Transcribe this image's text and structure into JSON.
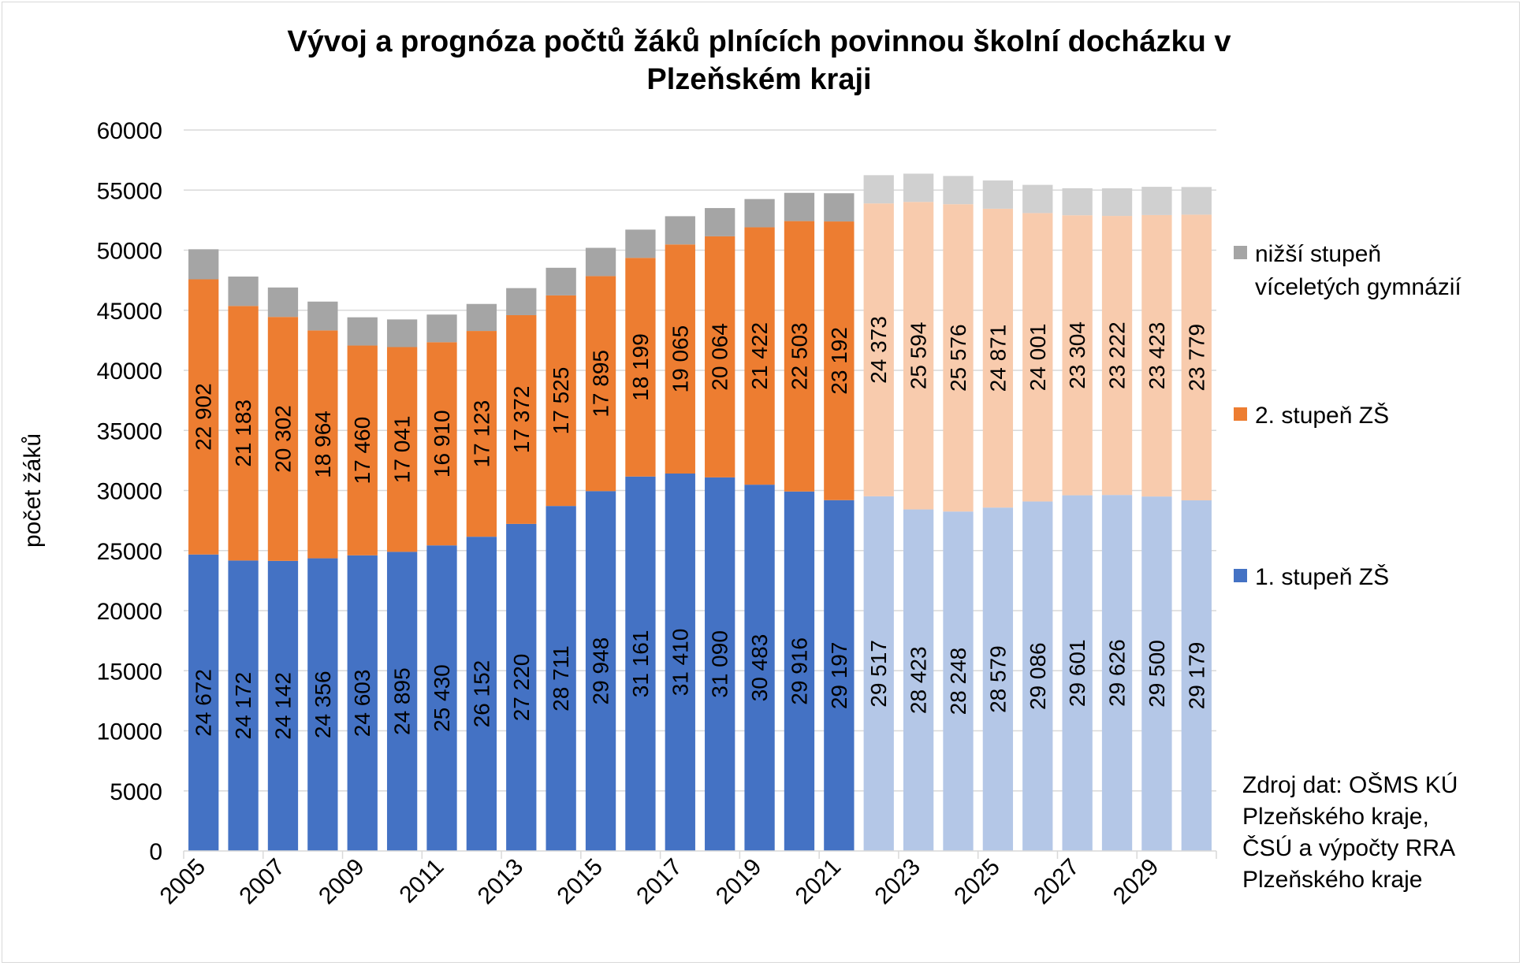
{
  "chart_data": {
    "type": "bar",
    "stacked": true,
    "title_lines": [
      "Vývoj a prognóza počtů žáků plnících povinnou školní docházku v",
      "Plzeňském kraji"
    ],
    "ylabel": "počet žáků",
    "ylim": [
      0,
      60000
    ],
    "y_ticks": [
      0,
      5000,
      10000,
      15000,
      20000,
      25000,
      30000,
      35000,
      40000,
      45000,
      50000,
      55000,
      60000
    ],
    "grid": true,
    "legend_position": "right",
    "categories": [
      "2005",
      "2006",
      "2007",
      "2008",
      "2009",
      "2010",
      "2011",
      "2012",
      "2013",
      "2014",
      "2015",
      "2016",
      "2017",
      "2018",
      "2019",
      "2020",
      "2021",
      "2022",
      "2023",
      "2024",
      "2025",
      "2026",
      "2027",
      "2028",
      "2029",
      "2030"
    ],
    "x_tick_labels_shown": [
      "2005",
      "2007",
      "2009",
      "2011",
      "2013",
      "2015",
      "2017",
      "2019",
      "2021",
      "2023",
      "2025",
      "2027",
      "2029"
    ],
    "forecast_from": "2022",
    "series": [
      {
        "name": "1. stupeň ZŠ",
        "color": "#4472c4",
        "forecast_color": "#b4c7e7",
        "values": [
          24672,
          24172,
          24142,
          24356,
          24603,
          24895,
          25430,
          26152,
          27220,
          28711,
          29948,
          31161,
          31410,
          31090,
          30483,
          29916,
          29197,
          29517,
          28423,
          28248,
          28579,
          29086,
          29601,
          29626,
          29500,
          29179
        ],
        "labels": [
          "24 672",
          "24 172",
          "24 142",
          "24 356",
          "24 603",
          "24 895",
          "25 430",
          "26 152",
          "27 220",
          "28 711",
          "29 948",
          "31 161",
          "31 410",
          "31 090",
          "30 483",
          "29 916",
          "29 197",
          "29 517",
          "28 423",
          "28 248",
          "28 579",
          "29 086",
          "29 601",
          "29 626",
          "29 500",
          "29 179"
        ]
      },
      {
        "name": "2. stupeň ZŠ",
        "color": "#ed7d31",
        "forecast_color": "#f8cbad",
        "values": [
          22902,
          21183,
          20302,
          18964,
          17460,
          17041,
          16910,
          17123,
          17372,
          17525,
          17895,
          18199,
          19065,
          20064,
          21422,
          22503,
          23192,
          24373,
          25594,
          25576,
          24871,
          24001,
          23304,
          23222,
          23423,
          23779
        ],
        "labels": [
          "22 902",
          "21 183",
          "20 302",
          "18 964",
          "17 460",
          "17 041",
          "16 910",
          "17 123",
          "17 372",
          "17 525",
          "17 895",
          "18 199",
          "19 065",
          "20 064",
          "21 422",
          "22 503",
          "23 192",
          "24 373",
          "25 594",
          "25 576",
          "24 871",
          "24 001",
          "23 304",
          "23 222",
          "23 423",
          "23 779"
        ]
      },
      {
        "name": "nižší stupeň víceletých gymnázií",
        "legend_lines": [
          "nižší stupeň",
          "víceletých gymnázií"
        ],
        "color": "#a5a5a5",
        "forecast_color": "#d0d0d0",
        "values": [
          2500,
          2450,
          2450,
          2400,
          2350,
          2300,
          2300,
          2250,
          2250,
          2300,
          2350,
          2350,
          2350,
          2350,
          2350,
          2350,
          2350,
          2350,
          2350,
          2350,
          2350,
          2350,
          2250,
          2300,
          2350,
          2300
        ]
      }
    ],
    "source_lines": [
      "Zdroj dat: OŠMS KÚ",
      "Plzeňského kraje,",
      "ČSÚ a výpočty RRA",
      "Plzeňského kraje"
    ]
  }
}
